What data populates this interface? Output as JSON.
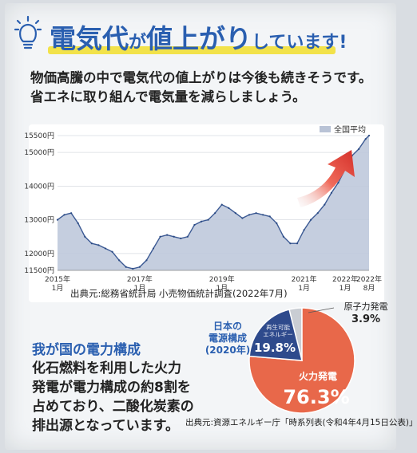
{
  "header": {
    "title_part1": "電気代",
    "title_part2": "が",
    "title_part3": "値上がり",
    "title_part4": "しています!",
    "lead_line1": "物価高騰の中で電気代の値上がりは今後も続きそうです。",
    "lead_line2": "省エネに取り組んで電気量を減らしましょう。"
  },
  "chart_data": [
    {
      "type": "area",
      "ylim": [
        11500,
        15500
      ],
      "y_ticks": [
        "11500円",
        "12000円",
        "13000円",
        "14000円",
        "15000円",
        "15500円"
      ],
      "y_tick_values": [
        11500,
        12000,
        13000,
        14000,
        15000,
        15500
      ],
      "x_tick_labels": [
        {
          "l1": "2015年",
          "l2": "1月",
          "t": 0
        },
        {
          "l1": "2017年",
          "l2": "1月",
          "t": 24
        },
        {
          "l1": "2019年",
          "l2": "1月",
          "t": 48
        },
        {
          "l1": "2021年",
          "l2": "1月",
          "t": 72
        },
        {
          "l1": "2022年",
          "l2": "1月",
          "t": 84
        },
        {
          "l1": "2022年",
          "l2": "8月",
          "t": 91
        }
      ],
      "legend": "全国平均",
      "legend_position": "top-right",
      "x": [
        0,
        2,
        4,
        6,
        8,
        10,
        12,
        14,
        16,
        18,
        20,
        22,
        24,
        26,
        28,
        30,
        32,
        34,
        36,
        38,
        40,
        42,
        44,
        46,
        48,
        50,
        52,
        54,
        56,
        58,
        60,
        62,
        64,
        66,
        68,
        70,
        72,
        74,
        76,
        78,
        80,
        82,
        84,
        86,
        88,
        90,
        91
      ],
      "values": [
        13000,
        13150,
        13200,
        12900,
        12500,
        12300,
        12250,
        12150,
        12050,
        11800,
        11600,
        11550,
        11600,
        11800,
        12150,
        12500,
        12550,
        12500,
        12450,
        12500,
        12850,
        12950,
        13000,
        13200,
        13450,
        13350,
        13200,
        13050,
        13150,
        13200,
        13150,
        13100,
        12900,
        12500,
        12300,
        12300,
        12700,
        13000,
        13200,
        13450,
        13800,
        14100,
        14500,
        14900,
        15100,
        15400,
        15500
      ],
      "source": "出典元:総務省統計局 小売物価統計調査(2022年7月)"
    },
    {
      "type": "pie",
      "title_line1": "日本の",
      "title_line2": "電源構成",
      "title_line3": "(2020年)",
      "slices": [
        {
          "label": "火力発電",
          "value": 76.3,
          "value_label": "76.3%",
          "color": "#e8684a"
        },
        {
          "label_line1": "再生可能",
          "label_line2": "エネルギー",
          "value": 19.8,
          "value_label": "19.8%",
          "color": "#2e4a8c"
        },
        {
          "label": "原子力発電",
          "value": 3.9,
          "value_label": "3.9%",
          "color": "#c9cdd3"
        }
      ],
      "source": "出典元:資源エネルギー庁「時系列表(令和4年4月15日公表)」"
    }
  ],
  "section": {
    "title": "我が国の電力構成",
    "body_line1": "化石燃料を利用した火力",
    "body_line2": "発電が電力構成の約8割を",
    "body_line3": "占めており、二酸化炭素の",
    "body_line4": "排出源となっています。"
  }
}
